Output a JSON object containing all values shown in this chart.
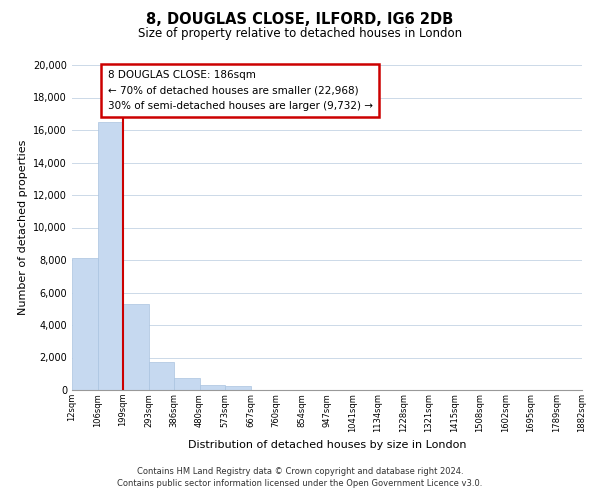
{
  "title": "8, DOUGLAS CLOSE, ILFORD, IG6 2DB",
  "subtitle": "Size of property relative to detached houses in London",
  "xlabel": "Distribution of detached houses by size in London",
  "ylabel": "Number of detached properties",
  "bin_labels": [
    "12sqm",
    "106sqm",
    "199sqm",
    "293sqm",
    "386sqm",
    "480sqm",
    "573sqm",
    "667sqm",
    "760sqm",
    "854sqm",
    "947sqm",
    "1041sqm",
    "1134sqm",
    "1228sqm",
    "1321sqm",
    "1415sqm",
    "1508sqm",
    "1602sqm",
    "1695sqm",
    "1789sqm",
    "1882sqm"
  ],
  "bar_heights": [
    8100,
    16500,
    5300,
    1750,
    750,
    300,
    250,
    0,
    0,
    0,
    0,
    0,
    0,
    0,
    0,
    0,
    0,
    0,
    0,
    0
  ],
  "bar_color": "#c6d9f0",
  "bar_edge_color": "#aac4e0",
  "property_line_color": "#cc0000",
  "property_line_bin_edge": 2,
  "annotation_title": "8 DOUGLAS CLOSE: 186sqm",
  "annotation_line1": "← 70% of detached houses are smaller (22,968)",
  "annotation_line2": "30% of semi-detached houses are larger (9,732) →",
  "annotation_box_color": "#cc0000",
  "ylim": [
    0,
    20000
  ],
  "yticks": [
    0,
    2000,
    4000,
    6000,
    8000,
    10000,
    12000,
    14000,
    16000,
    18000,
    20000
  ],
  "footer1": "Contains HM Land Registry data © Crown copyright and database right 2024.",
  "footer2": "Contains public sector information licensed under the Open Government Licence v3.0.",
  "background_color": "#ffffff",
  "grid_color": "#ccd9e8"
}
